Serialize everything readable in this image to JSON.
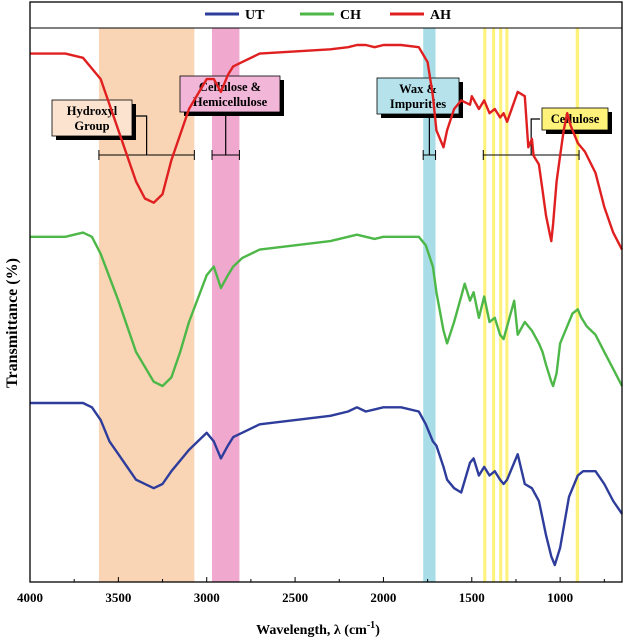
{
  "chart_data": {
    "type": "line",
    "xlabel": "Wavelength, λ  (cm",
    "xlabel_sup": "-1",
    "xlabel_tail": ")",
    "ylabel": "Transmittance (%)",
    "xlim": [
      4000,
      650
    ],
    "x_reversed": true,
    "xticks": [
      4000,
      3500,
      3000,
      2500,
      2000,
      1500,
      1000
    ],
    "grid": false,
    "legend_position": "top",
    "legend": [
      {
        "name": "UT",
        "color": "#2e3d9b"
      },
      {
        "name": "CH",
        "color": "#4db848"
      },
      {
        "name": "AH",
        "color": "#e02020"
      }
    ],
    "bands": [
      {
        "from": 3610,
        "to": 3070,
        "color": "#f9d5b6"
      },
      {
        "from": 2970,
        "to": 2815,
        "color": "#f0a8cf"
      },
      {
        "from": 1775,
        "to": 1705,
        "color": "#a8dde8"
      },
      {
        "from": 1435,
        "to": 1418,
        "color": "#fff27a"
      },
      {
        "from": 1385,
        "to": 1368,
        "color": "#fff27a"
      },
      {
        "from": 1345,
        "to": 1328,
        "color": "#fff27a"
      },
      {
        "from": 1310,
        "to": 1293,
        "color": "#fff27a"
      },
      {
        "from": 912,
        "to": 893,
        "color": "#fff27a"
      }
    ],
    "annotations": [
      {
        "label_lines": [
          "Hydroxyl",
          "Group"
        ],
        "color": "#fbe3cf",
        "bracket": [
          3610,
          3070
        ]
      },
      {
        "label_lines": [
          "Cellulose &",
          "Hemicellulose"
        ],
        "color": "#f2b6d8",
        "bracket": [
          2970,
          2815
        ]
      },
      {
        "label_lines": [
          "Wax &",
          "Impurities"
        ],
        "color": "#b6e2ec",
        "bracket": [
          1775,
          1705
        ]
      },
      {
        "label_lines": [
          "Cellulose"
        ],
        "color": "#fff27a",
        "bracket": [
          1435,
          893
        ]
      }
    ],
    "y_scale": "arbitrary units, offset traces, no tick labels",
    "series": [
      {
        "name": "AH",
        "color": "#e02020",
        "x": [
          4000,
          3900,
          3800,
          3700,
          3600,
          3500,
          3400,
          3350,
          3300,
          3250,
          3200,
          3100,
          3000,
          2960,
          2920,
          2880,
          2850,
          2800,
          2700,
          2500,
          2300,
          2200,
          2150,
          2100,
          2050,
          2000,
          1900,
          1800,
          1750,
          1720,
          1700,
          1660,
          1640,
          1600,
          1560,
          1510,
          1500,
          1460,
          1430,
          1400,
          1370,
          1340,
          1320,
          1300,
          1240,
          1200,
          1180,
          1160,
          1150,
          1120,
          1100,
          1080,
          1060,
          1050,
          1040,
          1020,
          1000,
          980,
          960,
          940,
          920,
          900,
          860,
          800,
          750,
          700,
          650
        ],
        "values": [
          80,
          80,
          80,
          79,
          74,
          62,
          50,
          46,
          45,
          47,
          55,
          67,
          74,
          74,
          71,
          75,
          77,
          78,
          80,
          80.5,
          81,
          81.5,
          82,
          82,
          81.5,
          82,
          82,
          81.5,
          78,
          70,
          62,
          58,
          62,
          67,
          69,
          68,
          70,
          67,
          69,
          66,
          67,
          65,
          66,
          64,
          71,
          70,
          58,
          60,
          56,
          54,
          48,
          42,
          38,
          36,
          40,
          50,
          56,
          62,
          66,
          63,
          61,
          59,
          57,
          52,
          44,
          38,
          34
        ]
      },
      {
        "name": "CH",
        "color": "#4db848",
        "x": [
          4000,
          3900,
          3800,
          3700,
          3650,
          3600,
          3500,
          3400,
          3300,
          3250,
          3200,
          3150,
          3100,
          3000,
          2960,
          2920,
          2880,
          2850,
          2800,
          2700,
          2500,
          2300,
          2200,
          2150,
          2100,
          2050,
          2000,
          1900,
          1800,
          1760,
          1720,
          1700,
          1660,
          1640,
          1600,
          1560,
          1540,
          1510,
          1490,
          1460,
          1430,
          1400,
          1370,
          1340,
          1320,
          1260,
          1240,
          1200,
          1160,
          1120,
          1100,
          1080,
          1050,
          1040,
          1020,
          1000,
          960,
          930,
          900,
          880,
          850,
          800,
          750,
          700,
          650
        ],
        "values": [
          37,
          37,
          37,
          38,
          37,
          33,
          22,
          10,
          3,
          2,
          4,
          10,
          17,
          28,
          30,
          25,
          28,
          30,
          32,
          34,
          35,
          36,
          37,
          37.5,
          37,
          36.5,
          37,
          37,
          37,
          35,
          30,
          24,
          15,
          12,
          17,
          23,
          26,
          22,
          24,
          18,
          23,
          17,
          18,
          14,
          13,
          22,
          14,
          17,
          15,
          12,
          10,
          7,
          3,
          2,
          5,
          12,
          16,
          19,
          20,
          18,
          16,
          14,
          10,
          6,
          2
        ]
      },
      {
        "name": "UT",
        "color": "#2e3d9b",
        "x": [
          4000,
          3900,
          3800,
          3700,
          3650,
          3600,
          3550,
          3500,
          3400,
          3300,
          3250,
          3200,
          3100,
          3000,
          2960,
          2920,
          2880,
          2850,
          2800,
          2700,
          2500,
          2300,
          2200,
          2150,
          2100,
          2050,
          2000,
          1900,
          1800,
          1760,
          1720,
          1700,
          1660,
          1640,
          1600,
          1560,
          1510,
          1490,
          1460,
          1430,
          1400,
          1370,
          1340,
          1320,
          1300,
          1240,
          1200,
          1160,
          1120,
          1100,
          1080,
          1050,
          1030,
          1000,
          950,
          900,
          870,
          800,
          750,
          700,
          650
        ],
        "values": [
          -2,
          -2,
          -2,
          -2,
          -3,
          -6,
          -11,
          -14,
          -20,
          -22,
          -21,
          -18,
          -13,
          -9,
          -11,
          -15,
          -12,
          -10,
          -9,
          -7,
          -6,
          -5,
          -4,
          -3,
          -4,
          -3.5,
          -3,
          -3,
          -4,
          -7,
          -11,
          -12,
          -17,
          -20,
          -22,
          -23,
          -16,
          -15,
          -19,
          -17,
          -19,
          -18,
          -20,
          -21,
          -20,
          -14,
          -21,
          -22,
          -25,
          -29,
          -33,
          -38,
          -40,
          -36,
          -24,
          -19,
          -18,
          -18,
          -21,
          -25,
          -28
        ]
      }
    ]
  }
}
